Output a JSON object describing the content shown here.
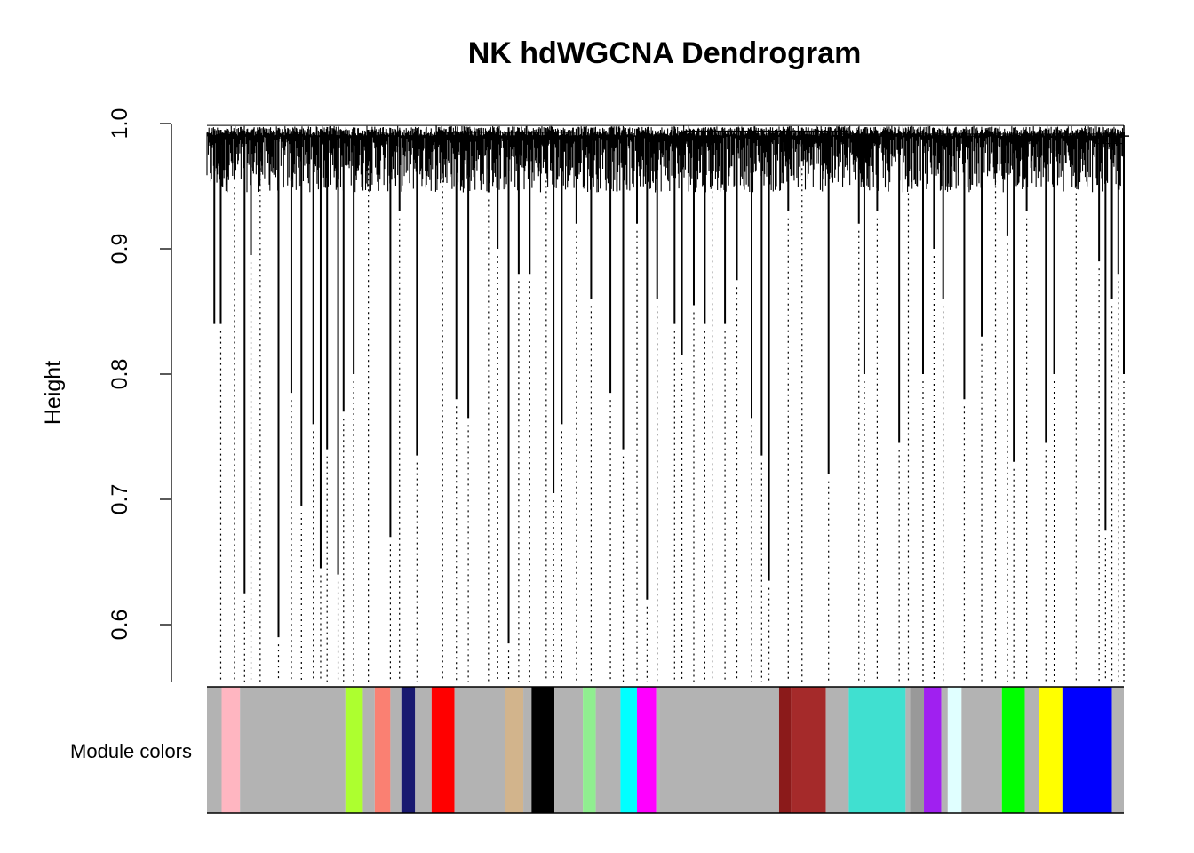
{
  "chart_data": {
    "type": "dendrogram",
    "title": "NK hdWGCNA Dendrogram",
    "ylabel": "Height",
    "xlabel": "",
    "yticks": [
      0.6,
      0.7,
      0.8,
      0.9,
      1.0
    ],
    "ytick_labels": [
      "0.6",
      "0.7",
      "0.8",
      "0.9",
      "1.0"
    ],
    "ylim": [
      0.55,
      1.0
    ],
    "color_bar_label": "Module colors",
    "grid": false,
    "legend": "none",
    "module_colors": [
      {
        "color": "#b3b3b3",
        "span": [
          0.0,
          0.016
        ]
      },
      {
        "color": "#ffb6c1",
        "span": [
          0.016,
          0.036
        ]
      },
      {
        "color": "#b3b3b3",
        "span": [
          0.036,
          0.151
        ]
      },
      {
        "color": "#adff2f",
        "span": [
          0.151,
          0.17
        ]
      },
      {
        "color": "#b3b3b3",
        "span": [
          0.17,
          0.183
        ]
      },
      {
        "color": "#fa8072",
        "span": [
          0.183,
          0.2
        ]
      },
      {
        "color": "#b3b3b3",
        "span": [
          0.2,
          0.212
        ]
      },
      {
        "color": "#191970",
        "span": [
          0.212,
          0.227
        ]
      },
      {
        "color": "#b3b3b3",
        "span": [
          0.227,
          0.245
        ]
      },
      {
        "color": "#ff0000",
        "span": [
          0.245,
          0.27
        ]
      },
      {
        "color": "#b3b3b3",
        "span": [
          0.27,
          0.325
        ]
      },
      {
        "color": "#d2b48c",
        "span": [
          0.325,
          0.345
        ]
      },
      {
        "color": "#b3b3b3",
        "span": [
          0.345,
          0.354
        ]
      },
      {
        "color": "#000000",
        "span": [
          0.354,
          0.379
        ]
      },
      {
        "color": "#b3b3b3",
        "span": [
          0.379,
          0.41
        ]
      },
      {
        "color": "#90ee90",
        "span": [
          0.41,
          0.424
        ]
      },
      {
        "color": "#b3b3b3",
        "span": [
          0.424,
          0.451
        ]
      },
      {
        "color": "#00ffff",
        "span": [
          0.451,
          0.469
        ]
      },
      {
        "color": "#ff00ff",
        "span": [
          0.469,
          0.49
        ]
      },
      {
        "color": "#b3b3b3",
        "span": [
          0.49,
          0.624
        ]
      },
      {
        "color": "#8b1a1a",
        "span": [
          0.624,
          0.637
        ]
      },
      {
        "color": "#a52a2a",
        "span": [
          0.637,
          0.675
        ]
      },
      {
        "color": "#b3b3b3",
        "span": [
          0.675,
          0.7
        ]
      },
      {
        "color": "#40e0d0",
        "span": [
          0.7,
          0.762
        ]
      },
      {
        "color": "#b3b3b3",
        "span": [
          0.762,
          0.767
        ]
      },
      {
        "color": "#999999",
        "span": [
          0.767,
          0.782
        ]
      },
      {
        "color": "#a020f0",
        "span": [
          0.782,
          0.801
        ]
      },
      {
        "color": "#b3b3b3",
        "span": [
          0.801,
          0.808
        ]
      },
      {
        "color": "#e0ffff",
        "span": [
          0.808,
          0.823
        ]
      },
      {
        "color": "#b3b3b3",
        "span": [
          0.823,
          0.867
        ]
      },
      {
        "color": "#00ff00",
        "span": [
          0.867,
          0.892
        ]
      },
      {
        "color": "#b3b3b3",
        "span": [
          0.892,
          0.907
        ]
      },
      {
        "color": "#ffff00",
        "span": [
          0.907,
          0.933
        ]
      },
      {
        "color": "#0000ff",
        "span": [
          0.933,
          0.987
        ]
      },
      {
        "color": "#b3b3b3",
        "span": [
          0.987,
          1.0
        ]
      }
    ],
    "branch_minima": [
      {
        "pos": 0.008,
        "height": 0.84
      },
      {
        "pos": 0.015,
        "height": 0.84
      },
      {
        "pos": 0.03,
        "height": 0.955
      },
      {
        "pos": 0.041,
        "height": 0.625
      },
      {
        "pos": 0.048,
        "height": 0.895
      },
      {
        "pos": 0.058,
        "height": 0.97
      },
      {
        "pos": 0.078,
        "height": 0.59
      },
      {
        "pos": 0.092,
        "height": 0.785
      },
      {
        "pos": 0.103,
        "height": 0.695
      },
      {
        "pos": 0.116,
        "height": 0.76
      },
      {
        "pos": 0.124,
        "height": 0.645
      },
      {
        "pos": 0.131,
        "height": 0.74
      },
      {
        "pos": 0.143,
        "height": 0.64
      },
      {
        "pos": 0.149,
        "height": 0.77
      },
      {
        "pos": 0.16,
        "height": 0.8
      },
      {
        "pos": 0.176,
        "height": 0.97
      },
      {
        "pos": 0.2,
        "height": 0.67
      },
      {
        "pos": 0.21,
        "height": 0.93
      },
      {
        "pos": 0.229,
        "height": 0.735
      },
      {
        "pos": 0.257,
        "height": 0.96
      },
      {
        "pos": 0.272,
        "height": 0.78
      },
      {
        "pos": 0.285,
        "height": 0.765
      },
      {
        "pos": 0.307,
        "height": 0.945
      },
      {
        "pos": 0.317,
        "height": 0.9
      },
      {
        "pos": 0.329,
        "height": 0.585
      },
      {
        "pos": 0.34,
        "height": 0.88
      },
      {
        "pos": 0.352,
        "height": 0.88
      },
      {
        "pos": 0.37,
        "height": 0.96
      },
      {
        "pos": 0.378,
        "height": 0.705
      },
      {
        "pos": 0.387,
        "height": 0.76
      },
      {
        "pos": 0.403,
        "height": 0.92
      },
      {
        "pos": 0.419,
        "height": 0.86
      },
      {
        "pos": 0.44,
        "height": 0.785
      },
      {
        "pos": 0.454,
        "height": 0.74
      },
      {
        "pos": 0.469,
        "height": 0.92
      },
      {
        "pos": 0.48,
        "height": 0.62
      },
      {
        "pos": 0.491,
        "height": 0.86
      },
      {
        "pos": 0.51,
        "height": 0.84
      },
      {
        "pos": 0.518,
        "height": 0.815
      },
      {
        "pos": 0.531,
        "height": 0.855
      },
      {
        "pos": 0.543,
        "height": 0.84
      },
      {
        "pos": 0.551,
        "height": 0.96
      },
      {
        "pos": 0.565,
        "height": 0.84
      },
      {
        "pos": 0.578,
        "height": 0.875
      },
      {
        "pos": 0.594,
        "height": 0.765
      },
      {
        "pos": 0.605,
        "height": 0.735
      },
      {
        "pos": 0.613,
        "height": 0.635
      },
      {
        "pos": 0.634,
        "height": 0.93
      },
      {
        "pos": 0.649,
        "height": 0.97
      },
      {
        "pos": 0.678,
        "height": 0.72
      },
      {
        "pos": 0.711,
        "height": 0.92
      },
      {
        "pos": 0.717,
        "height": 0.8
      },
      {
        "pos": 0.731,
        "height": 0.93
      },
      {
        "pos": 0.755,
        "height": 0.745
      },
      {
        "pos": 0.765,
        "height": 0.95
      },
      {
        "pos": 0.781,
        "height": 0.8
      },
      {
        "pos": 0.793,
        "height": 0.9
      },
      {
        "pos": 0.803,
        "height": 0.86
      },
      {
        "pos": 0.826,
        "height": 0.78
      },
      {
        "pos": 0.845,
        "height": 0.83
      },
      {
        "pos": 0.86,
        "height": 0.96
      },
      {
        "pos": 0.873,
        "height": 0.91
      },
      {
        "pos": 0.88,
        "height": 0.73
      },
      {
        "pos": 0.894,
        "height": 0.93
      },
      {
        "pos": 0.915,
        "height": 0.745
      },
      {
        "pos": 0.924,
        "height": 0.8
      },
      {
        "pos": 0.948,
        "height": 0.95
      },
      {
        "pos": 0.973,
        "height": 0.89
      },
      {
        "pos": 0.98,
        "height": 0.675
      },
      {
        "pos": 0.987,
        "height": 0.86
      },
      {
        "pos": 0.994,
        "height": 0.88
      },
      {
        "pos": 1.0,
        "height": 0.8
      }
    ]
  }
}
